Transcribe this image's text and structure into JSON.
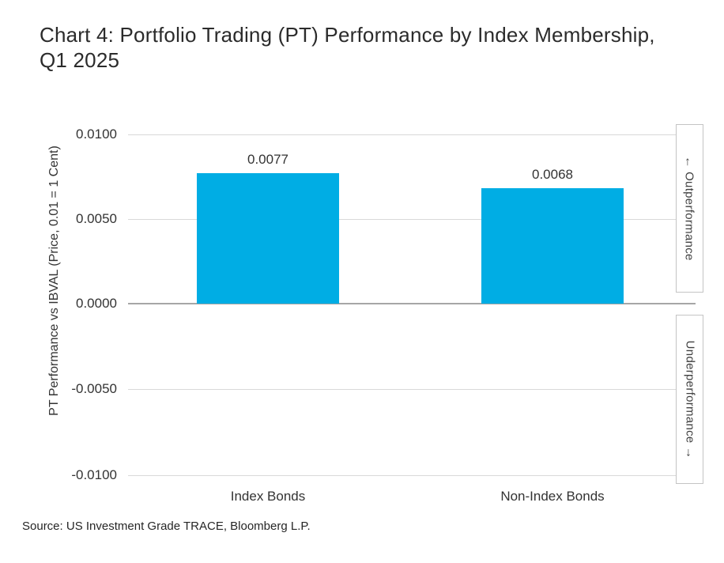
{
  "title": {
    "line1": "Chart 4: Portfolio Trading (PT) Performance by Index Membership,",
    "line2": "Q1 2025"
  },
  "chart_data": {
    "type": "bar",
    "title": "Chart 4: Portfolio Trading (PT) Performance by Index Membership, Q1 2025",
    "categories": [
      "Index Bonds",
      "Non-Index Bonds"
    ],
    "values": [
      0.0077,
      0.0068
    ],
    "value_labels": [
      "0.0077",
      "0.0068"
    ],
    "ylabel": "PT Performance vs IBVAL (Price, 0.01 = 1 Cent)",
    "ylim": [
      -0.01,
      0.01
    ],
    "ytick_labels": [
      "0.0100",
      "0.0050",
      "0.0000",
      "-0.0050",
      "-0.0100"
    ],
    "grid": "horizontal",
    "legend": "none",
    "bar_color": "#00ADE4",
    "annotations": {
      "top": "← Outperformance",
      "bottom": "Underperformance →"
    }
  },
  "source": "Source: US Investment Grade TRACE, Bloomberg L.P."
}
